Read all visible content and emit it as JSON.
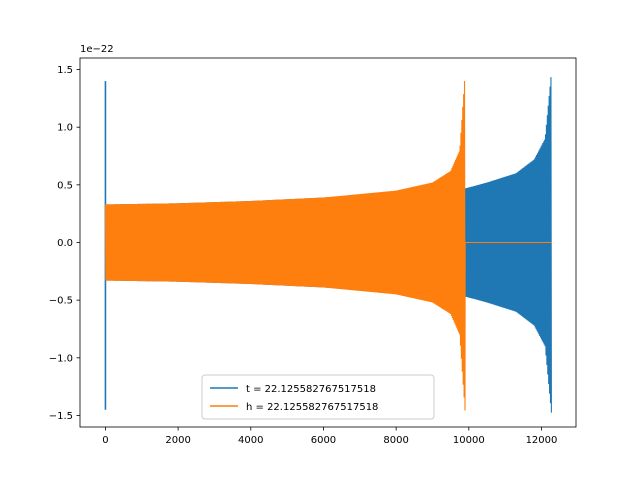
{
  "chart_data": {
    "type": "line",
    "title": "",
    "xlabel": "",
    "ylabel": "",
    "y_offset_label": "1e−22",
    "xlim": [
      -700,
      12950
    ],
    "ylim": [
      -1.6,
      1.6
    ],
    "xticks": [
      0,
      2000,
      4000,
      6000,
      8000,
      10000,
      12000
    ],
    "xtick_labels": [
      "0",
      "2000",
      "4000",
      "6000",
      "8000",
      "10000",
      "12000"
    ],
    "yticks": [
      -1.5,
      -1.0,
      -0.5,
      0.0,
      0.5,
      1.0,
      1.5
    ],
    "ytick_labels": [
      "−1.5",
      "−1.0",
      "−0.5",
      "0.0",
      "0.5",
      "1.0",
      "1.5"
    ],
    "grid": false,
    "legend_position": "lower center",
    "series": [
      {
        "name": "t = 22.125582767517518",
        "color": "#1f77b4",
        "x_range": [
          0,
          12280
        ],
        "oscillation_span": [
          0,
          12280
        ],
        "zero_segment": null,
        "initial_spike": [
          1.4,
          -1.45
        ],
        "envelope": [
          {
            "x": 0,
            "y": 0.33
          },
          {
            "x": 2000,
            "y": 0.34
          },
          {
            "x": 4000,
            "y": 0.36
          },
          {
            "x": 6000,
            "y": 0.39
          },
          {
            "x": 8000,
            "y": 0.43
          },
          {
            "x": 9800,
            "y": 0.46
          },
          {
            "x": 10500,
            "y": 0.52
          },
          {
            "x": 11300,
            "y": 0.6
          },
          {
            "x": 11800,
            "y": 0.72
          },
          {
            "x": 12100,
            "y": 0.9
          },
          {
            "x": 12280,
            "y": 1.5
          }
        ]
      },
      {
        "name": "h = 22.125582767517518",
        "color": "#ff7f0e",
        "x_range": [
          0,
          12280
        ],
        "oscillation_span": [
          0,
          9900
        ],
        "zero_segment": [
          9900,
          12280
        ],
        "initial_spike": null,
        "envelope": [
          {
            "x": 0,
            "y": 0.33
          },
          {
            "x": 2000,
            "y": 0.34
          },
          {
            "x": 4000,
            "y": 0.36
          },
          {
            "x": 6000,
            "y": 0.39
          },
          {
            "x": 8000,
            "y": 0.45
          },
          {
            "x": 9000,
            "y": 0.52
          },
          {
            "x": 9500,
            "y": 0.62
          },
          {
            "x": 9750,
            "y": 0.8
          },
          {
            "x": 9900,
            "y": 1.48
          }
        ]
      }
    ]
  }
}
